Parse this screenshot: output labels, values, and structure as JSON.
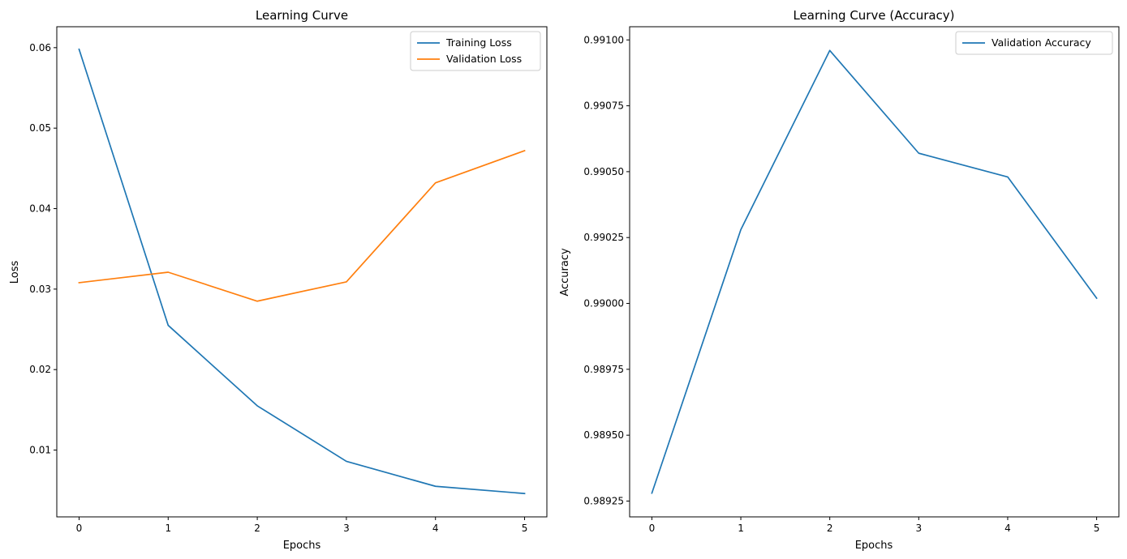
{
  "colors": {
    "training": "#1f77b4",
    "validation": "#ff7f0e"
  },
  "chart_data": [
    {
      "type": "line",
      "title": "Learning Curve",
      "xlabel": "Epochs",
      "ylabel": "Loss",
      "x": [
        0,
        1,
        2,
        3,
        4,
        5
      ],
      "xlim": [
        -0.25,
        5.25
      ],
      "ylim": [
        0.0017,
        0.0626
      ],
      "xticks": [
        "0",
        "1",
        "2",
        "3",
        "4",
        "5"
      ],
      "yticks": [
        {
          "value": 0.01,
          "label": "0.01"
        },
        {
          "value": 0.02,
          "label": "0.02"
        },
        {
          "value": 0.03,
          "label": "0.03"
        },
        {
          "value": 0.04,
          "label": "0.04"
        },
        {
          "value": 0.05,
          "label": "0.05"
        },
        {
          "value": 0.06,
          "label": "0.06"
        }
      ],
      "legend_position": "top-right",
      "grid": false,
      "series": [
        {
          "name": "Training Loss",
          "color": "#1f77b4",
          "values": [
            0.0598,
            0.0255,
            0.0155,
            0.0086,
            0.0055,
            0.0046
          ]
        },
        {
          "name": "Validation Loss",
          "color": "#ff7f0e",
          "values": [
            0.0308,
            0.0321,
            0.0285,
            0.0309,
            0.0432,
            0.0472
          ]
        }
      ]
    },
    {
      "type": "line",
      "title": "Learning Curve (Accuracy)",
      "xlabel": "Epochs",
      "ylabel": "Accuracy",
      "x": [
        0,
        1,
        2,
        3,
        4,
        5
      ],
      "xlim": [
        -0.25,
        5.25
      ],
      "ylim": [
        0.98919,
        0.99105
      ],
      "xticks": [
        "0",
        "1",
        "2",
        "3",
        "4",
        "5"
      ],
      "yticks": [
        {
          "value": 0.98925,
          "label": "0.98925"
        },
        {
          "value": 0.9895,
          "label": "0.98950"
        },
        {
          "value": 0.98975,
          "label": "0.98975"
        },
        {
          "value": 0.99,
          "label": "0.99000"
        },
        {
          "value": 0.99025,
          "label": "0.99025"
        },
        {
          "value": 0.9905,
          "label": "0.99050"
        },
        {
          "value": 0.99075,
          "label": "0.99075"
        },
        {
          "value": 0.991,
          "label": "0.99100"
        }
      ],
      "legend_position": "top-right",
      "grid": false,
      "series": [
        {
          "name": "Validation Accuracy",
          "color": "#1f77b4",
          "values": [
            0.98928,
            0.99028,
            0.99096,
            0.99057,
            0.99048,
            0.99002
          ]
        }
      ]
    }
  ]
}
